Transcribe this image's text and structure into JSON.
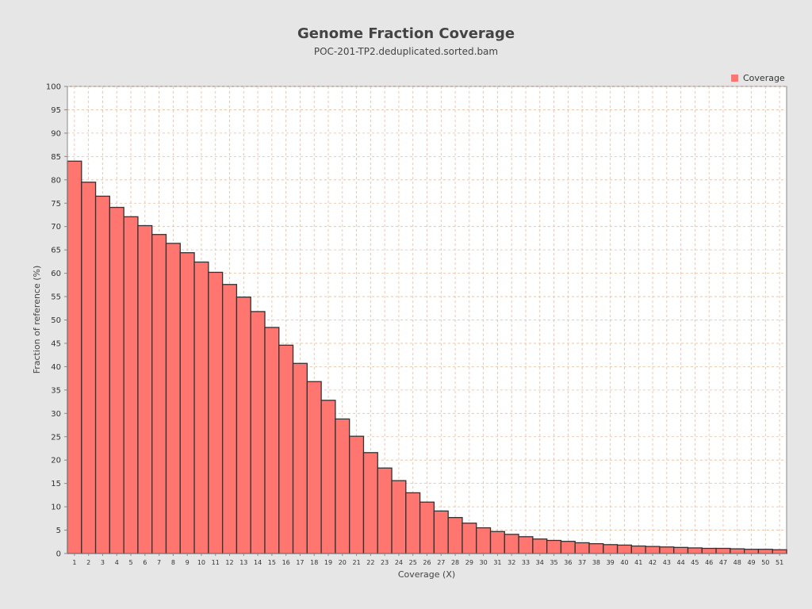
{
  "chart_data": {
    "type": "bar",
    "title": "Genome Fraction Coverage",
    "subtitle": "POC-201-TP2.deduplicated.sorted.bam",
    "xlabel": "Coverage (X)",
    "ylabel": "Fraction of reference (%)",
    "ylim": [
      0,
      100
    ],
    "yticks": [
      0,
      5,
      10,
      15,
      20,
      25,
      30,
      35,
      40,
      45,
      50,
      55,
      60,
      65,
      70,
      75,
      80,
      85,
      90,
      95,
      100
    ],
    "grid": true,
    "legend_position": "top-right",
    "categories": [
      "1",
      "2",
      "3",
      "4",
      "5",
      "6",
      "7",
      "8",
      "9",
      "10",
      "11",
      "12",
      "13",
      "14",
      "15",
      "16",
      "17",
      "18",
      "19",
      "20",
      "21",
      "22",
      "23",
      "24",
      "25",
      "26",
      "27",
      "28",
      "29",
      "30",
      "31",
      "32",
      "33",
      "34",
      "35",
      "36",
      "37",
      "38",
      "39",
      "40",
      "41",
      "42",
      "43",
      "44",
      "45",
      "46",
      "47",
      "48",
      "49",
      "50",
      "51"
    ],
    "series": [
      {
        "name": "Coverage",
        "color": "#ff7570",
        "values": [
          84.0,
          79.5,
          76.5,
          74.1,
          72.1,
          70.2,
          68.3,
          66.4,
          64.4,
          62.4,
          60.2,
          57.6,
          54.9,
          51.8,
          48.4,
          44.6,
          40.7,
          36.8,
          32.8,
          28.8,
          25.1,
          21.6,
          18.3,
          15.6,
          13.0,
          11.0,
          9.1,
          7.7,
          6.5,
          5.5,
          4.7,
          4.1,
          3.6,
          3.1,
          2.8,
          2.6,
          2.3,
          2.1,
          1.9,
          1.8,
          1.6,
          1.5,
          1.4,
          1.3,
          1.2,
          1.1,
          1.1,
          1.0,
          0.9,
          0.9,
          0.8
        ]
      }
    ]
  },
  "colors": {
    "background": "#e6e6e6",
    "plot_background": "#ffffff",
    "bar_fill": "#ff7570",
    "bar_stroke": "#333333",
    "grid": "#f0b89a",
    "title_text": "#444444"
  }
}
